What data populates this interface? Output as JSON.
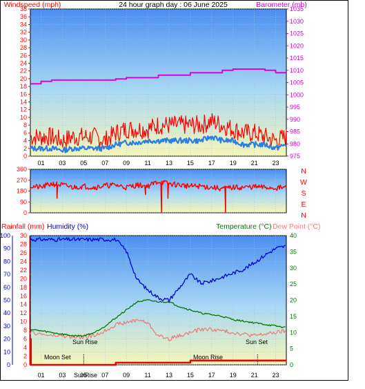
{
  "header": {
    "left": "Windspeed (mph)",
    "center": "24 hour graph day : 06 June 2025",
    "right": "Barometer (mb)"
  },
  "colors": {
    "red": "#ff0000",
    "magenta": "#cc00cc",
    "blue": "#0000cc",
    "green": "#007700",
    "pink": "#ff7777",
    "wind_gust": "#ff0000",
    "wind_avg": "#2b7fe0",
    "barometer": "#dd00dd",
    "humidity": "#0000cc",
    "temperature": "#007700",
    "dewpoint": "#ee7777",
    "rain": "#ee0000"
  },
  "hours": [
    "01",
    "03",
    "05",
    "07",
    "09",
    "11",
    "13",
    "15",
    "17",
    "19",
    "21",
    "23"
  ],
  "middle": {
    "compass": [
      "N",
      "W",
      "S",
      "E",
      "N"
    ]
  },
  "bottom_header": {
    "rainfall": "Rainfall (mm)",
    "humidity": "Humidity (%)",
    "temperature": "Temperature (°C)",
    "dewpoint": "Dew Point (°C)"
  },
  "annotations": {
    "sun_rise": "Sun Rise",
    "sun_set": "Sun Set",
    "moon_set": "Moon Set",
    "moon_rise": "Moon Rise",
    "sunrise_marker": "SunRise"
  },
  "chart_data": [
    {
      "type": "line",
      "title": "24 hour graph day : 06 June 2025",
      "x": [
        0,
        1,
        2,
        3,
        4,
        5,
        6,
        7,
        8,
        9,
        10,
        11,
        12,
        13,
        14,
        15,
        16,
        17,
        18,
        19,
        20,
        21,
        22,
        23,
        24
      ],
      "ylabel": "Windspeed (mph)",
      "ylim": [
        0,
        38
      ],
      "yticks": [
        0,
        2,
        4,
        6,
        8,
        10,
        12,
        14,
        16,
        18,
        20,
        22,
        24,
        26,
        28,
        30,
        32,
        34,
        36,
        38
      ],
      "y2label": "Barometer (mb)",
      "y2lim": [
        975,
        1035
      ],
      "y2ticks": [
        975,
        980,
        985,
        990,
        995,
        1000,
        1005,
        1010,
        1015,
        1020,
        1025,
        1030,
        1035
      ],
      "series": [
        {
          "values": [
            5,
            5,
            5,
            4,
            5,
            5,
            5,
            4,
            6,
            7,
            7,
            7,
            8,
            8,
            8,
            8,
            8,
            9,
            8,
            7,
            6,
            6,
            5,
            4,
            5
          ]
        },
        {
          "values": [
            2,
            2,
            2,
            1.5,
            2,
            2,
            2,
            2,
            3,
            3.5,
            3.5,
            4,
            4,
            4,
            4,
            4,
            4,
            5,
            4,
            4,
            3,
            3,
            3,
            2,
            3
          ]
        },
        {
          "axis": "right",
          "values": [
            1004.5,
            1005.5,
            1006,
            1006,
            1006,
            1006,
            1006,
            1006,
            1006.5,
            1007,
            1007,
            1007,
            1008,
            1008,
            1008,
            1009,
            1009,
            1009,
            1010,
            1010.5,
            1010.5,
            1010.5,
            1010,
            1009,
            1009
          ]
        }
      ]
    },
    {
      "type": "line",
      "ylim": [
        0,
        360
      ],
      "yticks": [
        0,
        90,
        180,
        270,
        360
      ],
      "x": [
        0,
        1,
        2,
        3,
        4,
        5,
        6,
        7,
        8,
        9,
        10,
        11,
        12,
        13,
        14,
        15,
        16,
        17,
        18,
        19,
        20,
        21,
        22,
        23,
        24
      ],
      "series": [
        {
          "values": [
            220,
            210,
            240,
            230,
            210,
            220,
            210,
            225,
            230,
            210,
            230,
            220,
            260,
            240,
            230,
            220,
            220,
            210,
            200,
            210,
            210,
            215,
            210,
            205,
            210
          ]
        }
      ]
    },
    {
      "type": "line",
      "x": [
        0,
        1,
        2,
        3,
        4,
        5,
        6,
        7,
        8,
        9,
        10,
        11,
        12,
        13,
        14,
        15,
        16,
        17,
        18,
        19,
        20,
        21,
        22,
        23,
        24
      ],
      "ylabel": "Humidity (%)",
      "ylim": [
        0,
        100
      ],
      "yticks": [
        0,
        10,
        20,
        30,
        40,
        50,
        60,
        70,
        80,
        90,
        100
      ],
      "rain_axis": {
        "label": "Rainfall (mm)",
        "ylim": [
          0,
          30
        ],
        "yticks": [
          0,
          2,
          4,
          6,
          8,
          10,
          12,
          14,
          16,
          18,
          20,
          22,
          24,
          26,
          28,
          30
        ]
      },
      "y2label": "Temperature (°C)",
      "y2lim": [
        0,
        40
      ],
      "y2ticks": [
        0,
        5,
        10,
        15,
        20,
        25,
        30,
        35,
        40
      ],
      "series": [
        {
          "axis": "humidity",
          "values": [
            97,
            97,
            97,
            97,
            97,
            97,
            97,
            97,
            97,
            88,
            66,
            58,
            52,
            50,
            60,
            70,
            63,
            65,
            68,
            71,
            74,
            79,
            85,
            90,
            92
          ]
        },
        {
          "axis": "right",
          "values": [
            11,
            10.5,
            10,
            9.5,
            9,
            9,
            10,
            12,
            14.5,
            17,
            19.5,
            20,
            19.5,
            19.5,
            18,
            17,
            16,
            15.5,
            15,
            14,
            13.5,
            13,
            12.5,
            12,
            11.5
          ]
        },
        {
          "axis": "right",
          "values": [
            10,
            9.5,
            9,
            9,
            8.5,
            8.5,
            9,
            10.5,
            12.5,
            13,
            14,
            13,
            9,
            8,
            9,
            10,
            11,
            11,
            10.5,
            10,
            9.5,
            9,
            9.5,
            10,
            10.5
          ]
        },
        {
          "axis": "rain",
          "values": [
            0,
            0,
            0,
            0,
            0,
            0,
            0,
            0,
            0.5,
            0.5,
            0.5,
            0.5,
            0.5,
            0.5,
            0.5,
            1,
            1,
            1,
            1,
            1,
            1,
            1,
            1,
            1,
            1
          ]
        }
      ]
    }
  ]
}
